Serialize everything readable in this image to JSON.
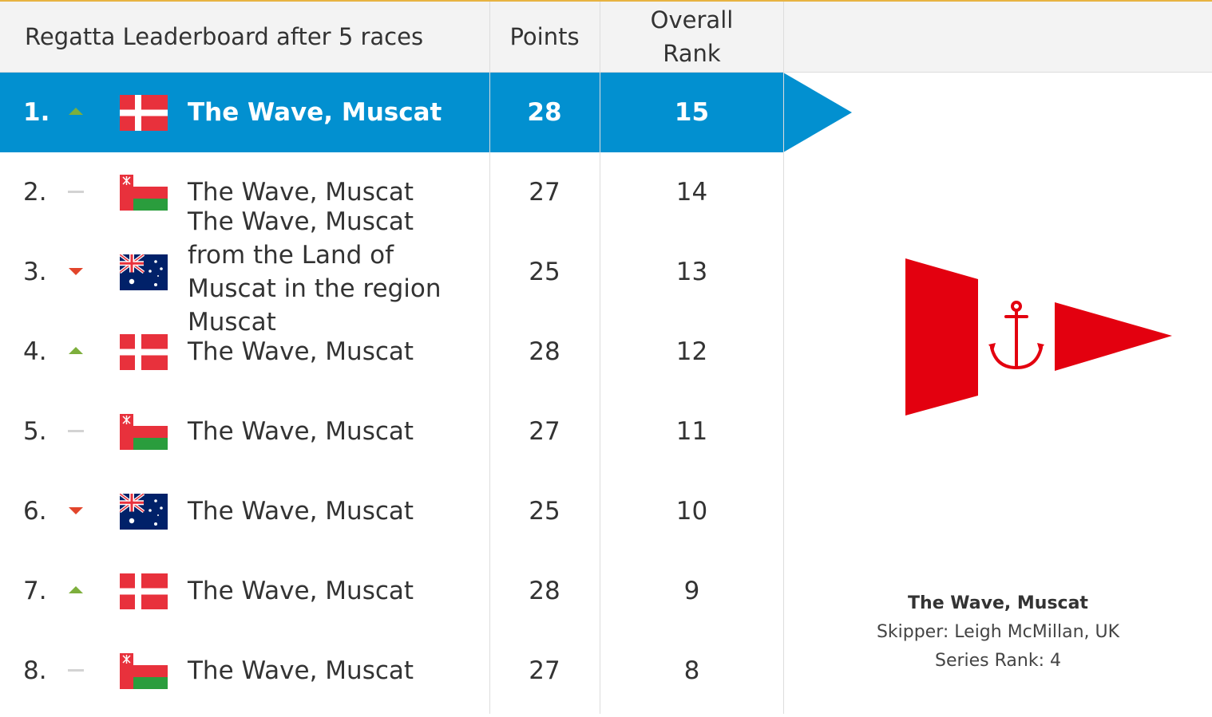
{
  "header": {
    "title": "Regatta Leaderboard after 5 races",
    "points": "Points",
    "overall_rank": "Overall\nRank"
  },
  "colors": {
    "accent": "#0290d0",
    "top_line": "#e8b341",
    "trend_up": "#7daf3c",
    "trend_down": "#e2452b",
    "trend_same": "#d3d3d3"
  },
  "rows": [
    {
      "pos": "1.",
      "trend": "up",
      "flag": "denmark-flag",
      "name": "The Wave, Muscat",
      "points": "28",
      "rank": "15"
    },
    {
      "pos": "2.",
      "trend": "same",
      "flag": "oman-flag",
      "name": "The Wave, Muscat",
      "points": "27",
      "rank": "14"
    },
    {
      "pos": "3.",
      "trend": "down",
      "flag": "australia-flag",
      "name": "The Wave, Muscat from the Land of Muscat in the region Muscat",
      "points": "25",
      "rank": "13"
    },
    {
      "pos": "4.",
      "trend": "up",
      "flag": "denmark-flag",
      "name": "The Wave, Muscat",
      "points": "28",
      "rank": "12"
    },
    {
      "pos": "5.",
      "trend": "same",
      "flag": "oman-flag",
      "name": "The Wave, Muscat",
      "points": "27",
      "rank": "11"
    },
    {
      "pos": "6.",
      "trend": "down",
      "flag": "australia-flag",
      "name": "The Wave, Muscat",
      "points": "25",
      "rank": "10"
    },
    {
      "pos": "7.",
      "trend": "up",
      "flag": "denmark-flag",
      "name": "The Wave, Muscat",
      "points": "28",
      "rank": "9"
    },
    {
      "pos": "8.",
      "trend": "same",
      "flag": "oman-flag",
      "name": "The Wave, Muscat",
      "points": "27",
      "rank": "8"
    }
  ],
  "selected_index": 0,
  "detail": {
    "burgee_icon": "anchor-burgee-icon",
    "name": "The Wave, Muscat",
    "skipper": "Skipper: Leigh McMillan, UK",
    "series_rank": "Series Rank: 4"
  }
}
